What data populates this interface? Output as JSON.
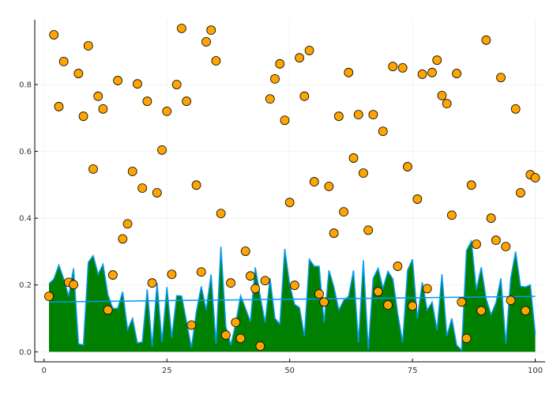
{
  "chart_data": {
    "type": "scatter",
    "title": "",
    "xlabel": "",
    "ylabel": "",
    "xlim": [
      -1.9,
      102
    ],
    "ylim": [
      -0.03,
      0.994
    ],
    "grid": true,
    "legend": "none",
    "x_ticks": [
      "0",
      "25",
      "50",
      "75",
      "100"
    ],
    "x_tick_values": [
      0,
      25,
      50,
      75,
      100
    ],
    "y_ticks": [
      "0.0",
      "0.2",
      "0.4",
      "0.6",
      "0.8"
    ],
    "y_tick_values": [
      0,
      0.2,
      0.4,
      0.6,
      0.8
    ],
    "area_series": {
      "type": "area",
      "fill_color": "#008000",
      "line_color": "#009af9",
      "x_start": 1,
      "values": [
        0.204,
        0.218,
        0.26,
        0.218,
        0.166,
        0.25,
        0.024,
        0.02,
        0.268,
        0.288,
        0.232,
        0.262,
        0.17,
        0.13,
        0.13,
        0.18,
        0.066,
        0.1,
        0.026,
        0.03,
        0.187,
        0.016,
        0.206,
        0.028,
        0.194,
        0.043,
        0.168,
        0.167,
        0.09,
        0.012,
        0.12,
        0.196,
        0.125,
        0.232,
        0.024,
        0.315,
        0.076,
        0.02,
        0.083,
        0.168,
        0.13,
        0.09,
        0.253,
        0.166,
        0.087,
        0.22,
        0.1,
        0.083,
        0.308,
        0.2,
        0.142,
        0.132,
        0.047,
        0.277,
        0.256,
        0.256,
        0.087,
        0.244,
        0.194,
        0.125,
        0.154,
        0.166,
        0.244,
        0.028,
        0.274,
        0.007,
        0.22,
        0.25,
        0.19,
        0.241,
        0.218,
        0.114,
        0.028,
        0.244,
        0.277,
        0.1,
        0.208,
        0.125,
        0.149,
        0.064,
        0.232,
        0.047,
        0.1,
        0.02,
        0.005,
        0.303,
        0.331,
        0.185,
        0.253,
        0.159,
        0.111,
        0.147,
        0.22,
        0.024,
        0.22,
        0.3,
        0.196,
        0.194,
        0.2,
        0.052
      ]
    },
    "trend_line": {
      "type": "line",
      "color": "#009af9",
      "x": [
        1,
        100
      ],
      "y": [
        0.149,
        0.166
      ]
    },
    "scatter_series": {
      "type": "scatter",
      "color": "#ffa500",
      "stroke": "#000000",
      "x_start": 1,
      "values": [
        0.166,
        0.949,
        0.734,
        0.869,
        0.208,
        0.201,
        0.833,
        0.705,
        0.916,
        0.547,
        0.765,
        0.727,
        0.125,
        0.23,
        0.812,
        0.338,
        0.383,
        0.54,
        0.802,
        0.49,
        0.75,
        0.206,
        0.476,
        0.604,
        0.72,
        0.232,
        0.8,
        0.968,
        0.75,
        0.08,
        0.499,
        0.239,
        0.928,
        0.963,
        0.871,
        0.414,
        0.05,
        0.206,
        0.088,
        0.04,
        0.301,
        0.227,
        0.189,
        0.017,
        0.213,
        0.757,
        0.817,
        0.862,
        0.693,
        0.447,
        0.199,
        0.88,
        0.765,
        0.902,
        0.509,
        0.173,
        0.149,
        0.495,
        0.355,
        0.705,
        0.419,
        0.836,
        0.58,
        0.71,
        0.535,
        0.364,
        0.71,
        0.18,
        0.66,
        0.14,
        0.854,
        0.256,
        0.85,
        0.554,
        0.137,
        0.457,
        0.831,
        0.189,
        0.836,
        0.873,
        0.767,
        0.743,
        0.409,
        0.833,
        0.149,
        0.04,
        0.499,
        0.322,
        0.123,
        0.933,
        0.4,
        0.334,
        0.821,
        0.315,
        0.154,
        0.727,
        0.476,
        0.123,
        0.53,
        0.521
      ]
    }
  }
}
